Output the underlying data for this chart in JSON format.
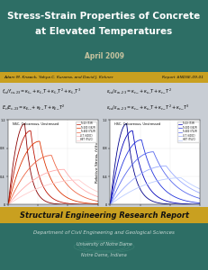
{
  "title_line1": "Stress-Strain Properties of Concrete",
  "title_line2": "at Elevated Temperatures",
  "date": "April 2009",
  "authors": "Adam M. Knaack, Yahya C. Kurama, and David J. Kirkner",
  "report_num": "Report #NDSE-09-01",
  "header_bg": "#2d6e65",
  "author_bar_bg": "#c9a020",
  "yellow_bar_bg": "#c9a020",
  "footer_bg": "#2d6e65",
  "body_bg": "#c8cdd4",
  "title_color": "#ffffff",
  "date_color": "#c8c8a0",
  "yellow_bar_text": "Structural Engineering Research Report",
  "footer_line1": "Department of Civil Engineering and Geological Sciences",
  "footer_line2": "University of Notre Dame",
  "footer_line3": "Notre Dame, Indiana",
  "nsc_curve_colors": [
    "#8b0000",
    "#bb1100",
    "#dd3300",
    "#ee6644",
    "#ffaaaa",
    "#ffcccc"
  ],
  "hsc_curve_colors": [
    "#00008b",
    "#0000bb",
    "#2233dd",
    "#5566ee",
    "#99aaff",
    "#bbccff"
  ],
  "peak_strains_nsc": [
    0.0022,
    0.003,
    0.0042,
    0.0058,
    0.0075,
    0.0095
  ],
  "peak_stresses_nsc": [
    1.15,
    1.05,
    0.9,
    0.7,
    0.5,
    0.35
  ],
  "peak_strains_hsc": [
    0.0022,
    0.003,
    0.0042,
    0.0058,
    0.0075,
    0.0095
  ],
  "peak_stresses_hsc": [
    1.15,
    1.05,
    0.92,
    0.75,
    0.55,
    0.38
  ],
  "xlim": [
    0,
    0.012
  ],
  "ylim": [
    0,
    1.2
  ],
  "xticks": [
    0.0,
    0.004,
    0.008,
    0.012
  ],
  "yticks": [
    0.0,
    0.4,
    0.8,
    1.2
  ]
}
